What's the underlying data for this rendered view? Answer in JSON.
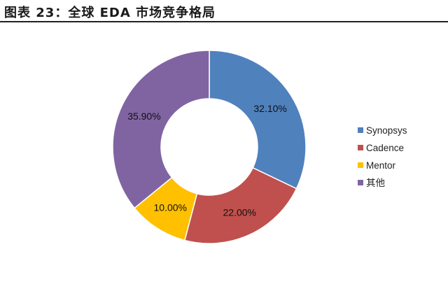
{
  "figure": {
    "title": "图表 23：全球 EDA 市场竞争格局"
  },
  "chart_data": {
    "type": "pie",
    "variant": "donut",
    "legend_position": "right",
    "categories": [
      "Synopsys",
      "Cadence",
      "Mentor",
      "其他"
    ],
    "values": [
      32.1,
      22.0,
      10.0,
      35.9
    ],
    "labels": [
      "32.10%",
      "22.00%",
      "10.00%",
      "35.90%"
    ],
    "colors": [
      "#4F81BD",
      "#C0504D",
      "#FFC000",
      "#8064A2"
    ]
  }
}
